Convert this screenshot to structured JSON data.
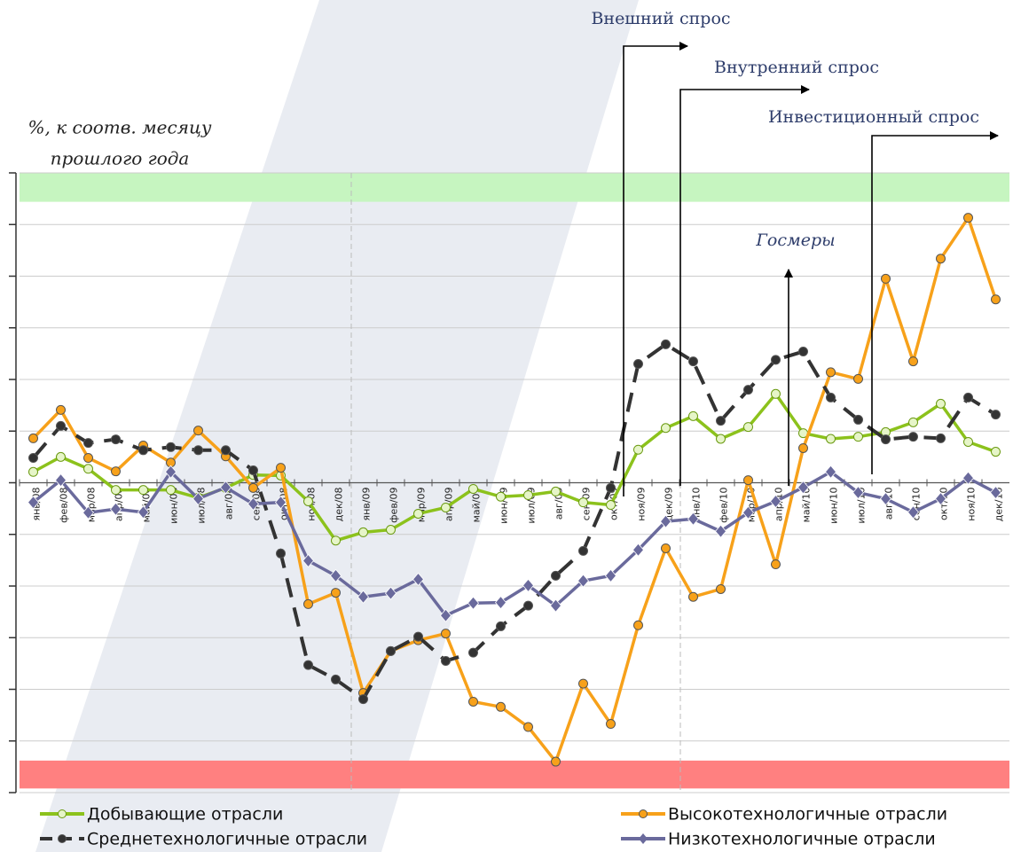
{
  "chart_data": {
    "type": "line",
    "y_label_lines": [
      "%, к соотв. месяцу",
      "прошлого года"
    ],
    "annotations": [
      "Внешний спрос",
      "Внутренний спрос",
      "Инвестиционный спрос",
      "Госмеры"
    ],
    "categories": [
      "янв/08",
      "фев/08",
      "мар/08",
      "апр/08",
      "май/08",
      "июн/08",
      "июл/08",
      "авг/08",
      "сен/08",
      "окт/08",
      "ноя/08",
      "дек/08",
      "янв/09",
      "фев/09",
      "мар/09",
      "апр/09",
      "май/09",
      "июн/09",
      "июл/09",
      "авг/09",
      "сен/09",
      "окт/09",
      "ноя/09",
      "дек/09",
      "янв/10",
      "фев/10",
      "мар/10",
      "апр/10",
      "май/10",
      "июн/10",
      "июл/10",
      "авг/10",
      "сен/10",
      "окт/10",
      "ноя/10",
      "дек/10"
    ],
    "ylim": [
      -60,
      60
    ],
    "yticks": [
      -60,
      -50,
      -40,
      -30,
      -20,
      -10,
      0,
      10,
      20,
      30,
      40,
      50,
      60
    ],
    "grid": true,
    "bands": [
      {
        "from": 54.4,
        "to": 60,
        "color": "#c6f5c0"
      },
      {
        "from": -59.2,
        "to": -53.8,
        "color": "#ff8080"
      }
    ],
    "series": [
      {
        "name": "Добывающие отрасли",
        "color": "#8cc21c",
        "marker": "circle",
        "dash": false,
        "values": [
          2.1,
          5.0,
          2.7,
          -1.4,
          -1.4,
          -1.4,
          -2.9,
          -1.0,
          1.5,
          1.4,
          -3.6,
          -11.2,
          -9.6,
          -9.1,
          -6.0,
          -4.8,
          -1.2,
          -2.7,
          -2.4,
          -1.7,
          -3.8,
          -4.3,
          6.4,
          10.6,
          12.9,
          8.5,
          10.8,
          17.2,
          9.6,
          8.5,
          8.9,
          9.8,
          11.7,
          15.3,
          7.9,
          6.0
        ]
      },
      {
        "name": "Высокотехнологичные отрасли",
        "color": "#f7a11a",
        "marker": "circle",
        "dash": false,
        "values": [
          8.6,
          14.1,
          4.8,
          2.2,
          7.2,
          3.9,
          10.1,
          5.1,
          -1.0,
          2.9,
          -23.5,
          -21.3,
          -40.7,
          -32.6,
          -30.5,
          -29.2,
          -42.4,
          -43.4,
          -47.3,
          -54.0,
          -38.9,
          -46.7,
          -27.6,
          -12.7,
          -22.1,
          -20.6,
          0.5,
          -15.8,
          6.7,
          21.4,
          20.1,
          39.5,
          23.5,
          43.4,
          51.3,
          35.5
        ]
      },
      {
        "name": "Среднетехнологичные отрасли",
        "color": "#333333",
        "marker": "circle",
        "dash": true,
        "values": [
          4.8,
          11.0,
          7.7,
          8.4,
          6.3,
          6.9,
          6.3,
          6.3,
          2.4,
          -13.7,
          -35.3,
          -38.1,
          -41.9,
          -32.6,
          -29.8,
          -34.5,
          -32.9,
          -27.8,
          -23.8,
          -18.0,
          -13.2,
          -1.0,
          23.0,
          26.8,
          23.5,
          12.0,
          18.0,
          23.8,
          25.4,
          16.5,
          12.2,
          8.4,
          8.9,
          8.6,
          16.5,
          13.2
        ]
      },
      {
        "name": "Низкотехнологичные отрасли",
        "color": "#6a6a9c",
        "marker": "diamond",
        "dash": false,
        "values": [
          -3.8,
          0.5,
          -5.8,
          -5.1,
          -5.7,
          2.1,
          -3.1,
          -0.9,
          -4.1,
          -3.8,
          -15.1,
          -18.0,
          -22.1,
          -21.4,
          -18.7,
          -25.7,
          -23.3,
          -23.2,
          -19.9,
          -23.8,
          -19.0,
          -18.0,
          -13.0,
          -7.5,
          -7.0,
          -9.4,
          -5.8,
          -3.6,
          -0.9,
          2.1,
          -1.9,
          -3.1,
          -5.7,
          -3.1,
          0.9,
          -1.9
        ]
      }
    ]
  }
}
